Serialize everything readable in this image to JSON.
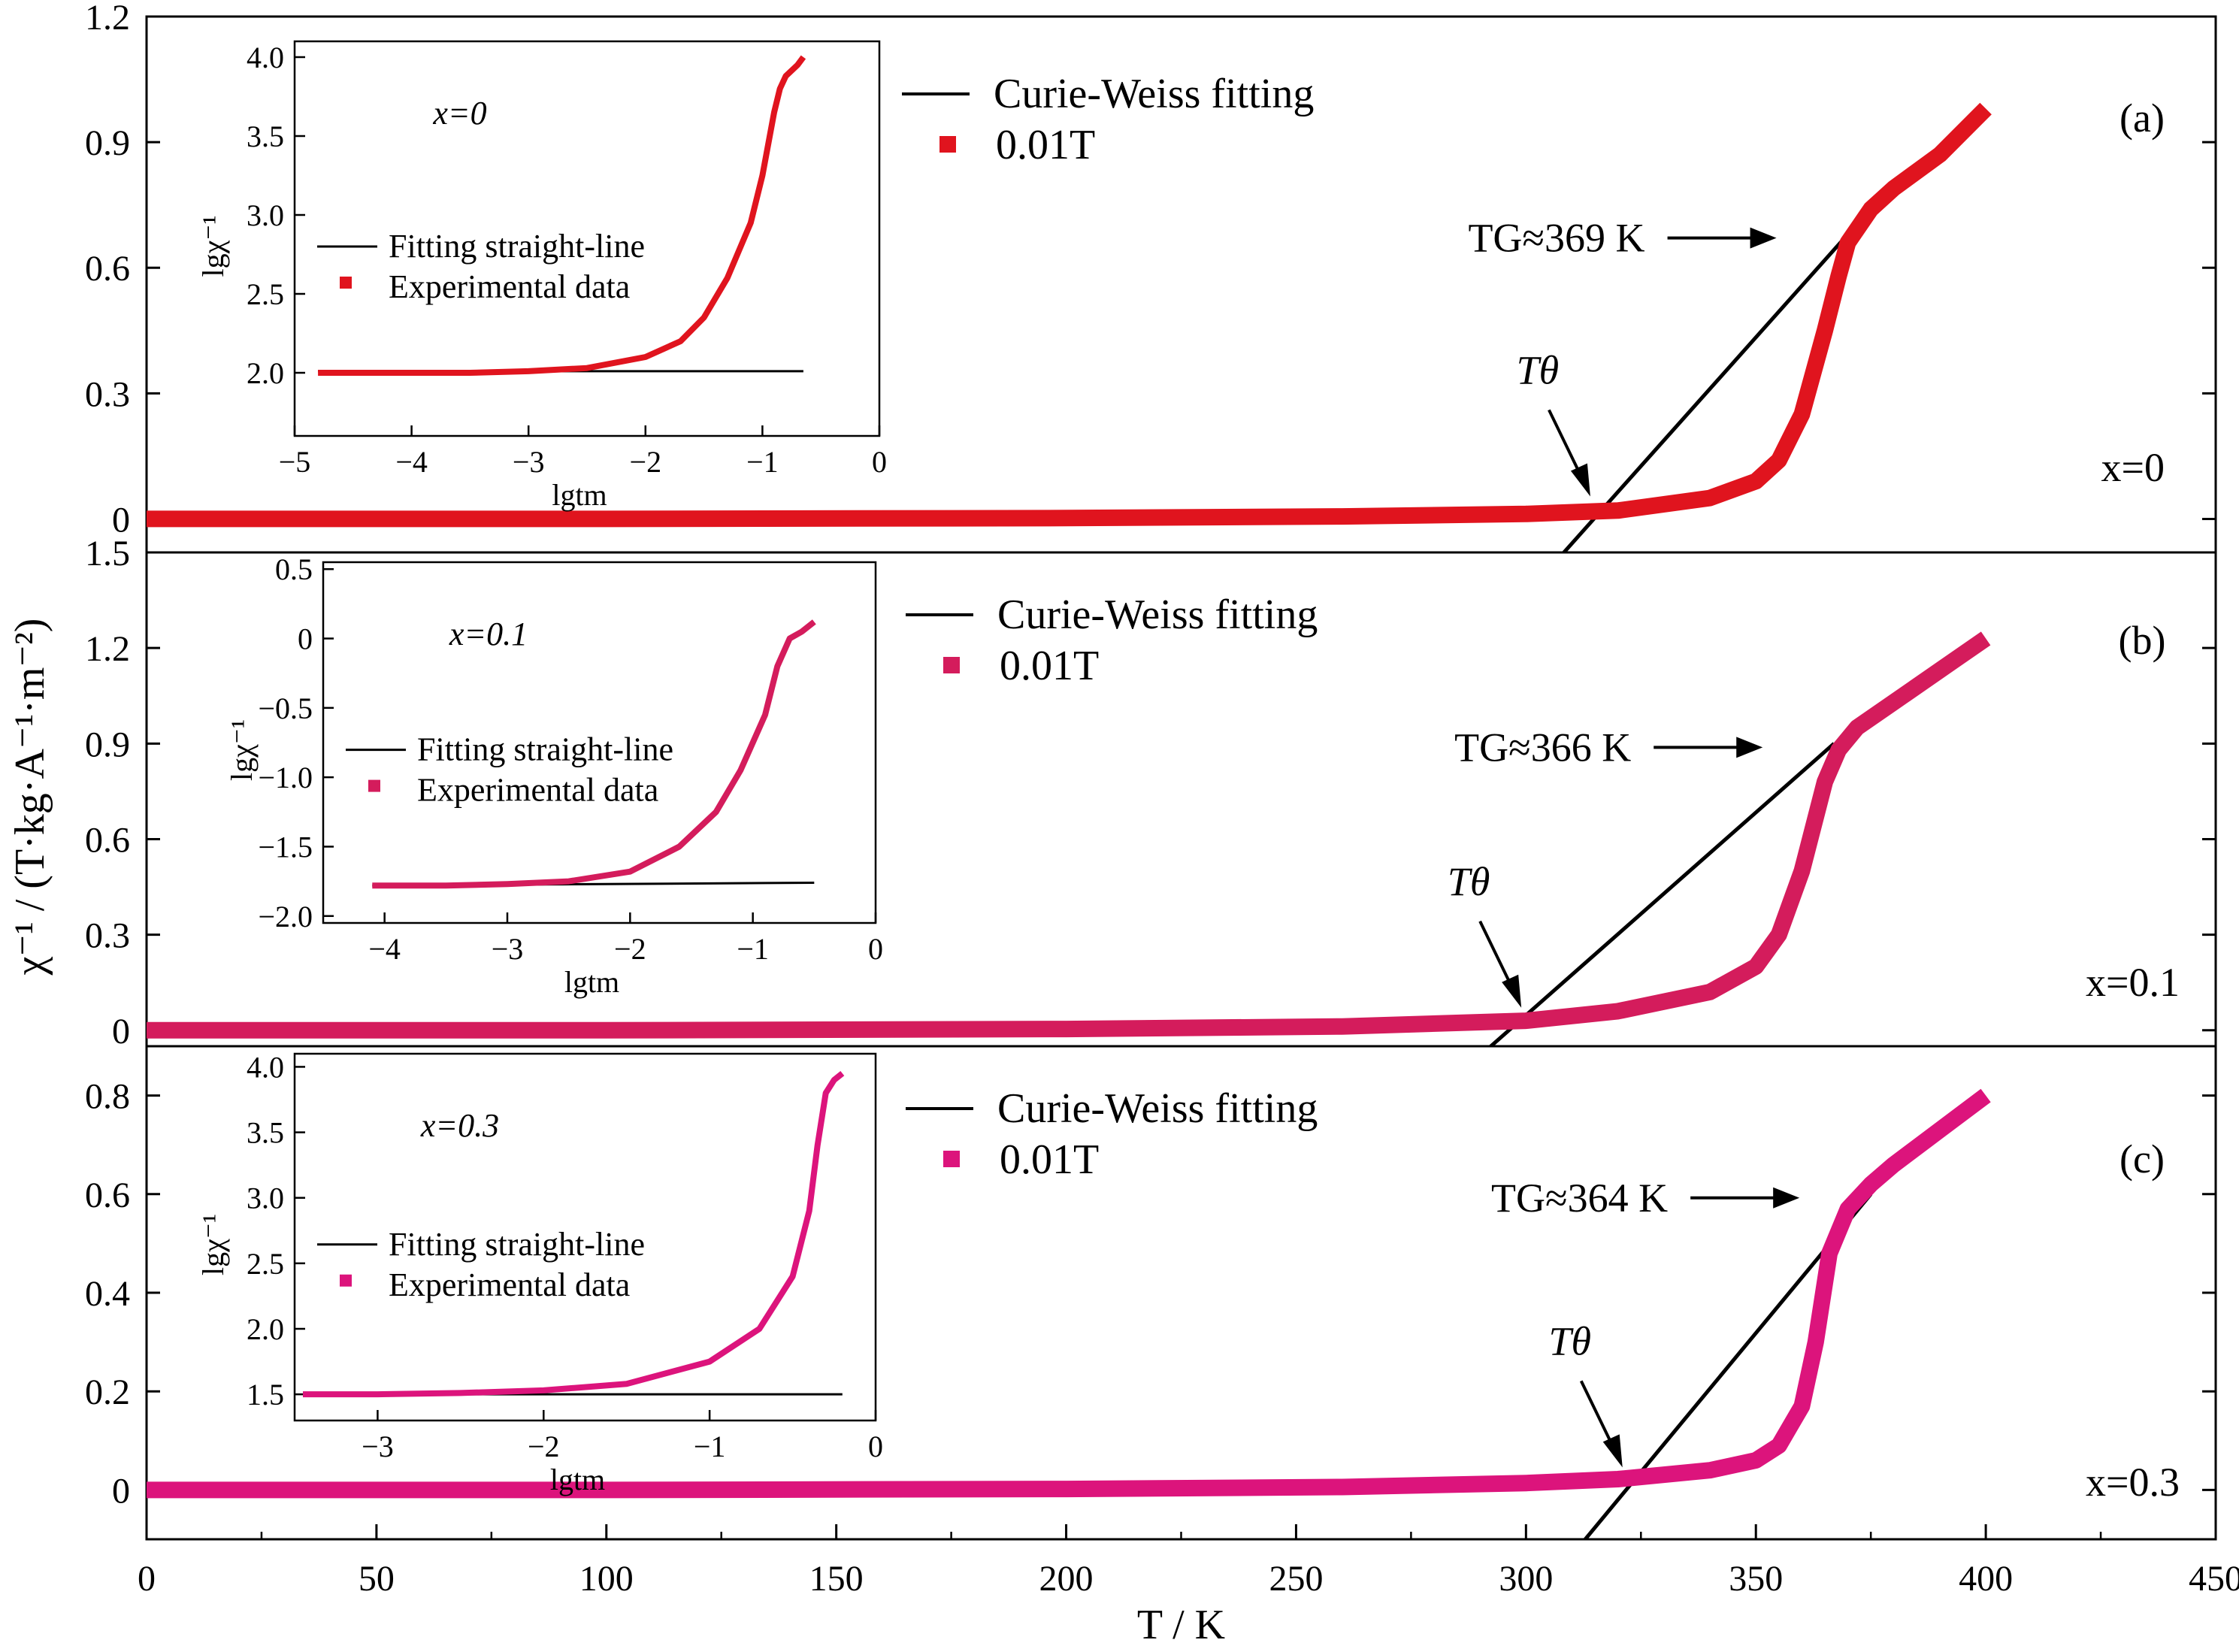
{
  "chart_data": {
    "type": "line",
    "xlabel": "T / K",
    "ylabel": "χ⁻¹ / (T·kg·A⁻¹·m⁻²)",
    "xlim": [
      0,
      450
    ],
    "xticks": [
      "0",
      "50",
      "100",
      "150",
      "200",
      "250",
      "300",
      "350",
      "400",
      "450"
    ],
    "panels": [
      {
        "label": "(a)",
        "composition": "x=0",
        "ylim": [
          -0.08,
          1.2
        ],
        "yticks": [
          "0",
          "0.3",
          "0.6",
          "0.9",
          "1.2"
        ],
        "legend": {
          "fit": "Curie-Weiss fitting",
          "data": "0.01T"
        },
        "TG_label": "TG≈369 K",
        "Ttheta_label": "Tθ",
        "color": "#e0141e",
        "series": [
          {
            "name": "0.01T",
            "x": [
              0,
              100,
              200,
              260,
              300,
              320,
              340,
              350,
              355,
              360,
              365,
              368,
              370,
              375,
              380,
              390,
              400
            ],
            "y": [
              0.0,
              0.0,
              0.002,
              0.006,
              0.012,
              0.02,
              0.05,
              0.09,
              0.14,
              0.25,
              0.45,
              0.58,
              0.66,
              0.74,
              0.79,
              0.87,
              0.98
            ]
          },
          {
            "name": "Curie-Weiss fitting",
            "x": [
              305,
              370
            ],
            "y": [
              -0.12,
              0.68
            ]
          }
        ],
        "inset": {
          "xlim": [
            -5,
            0
          ],
          "ylim": [
            1.6,
            4.1
          ],
          "xticks": [
            "−5",
            "−4",
            "−3",
            "−2",
            "−1",
            "0"
          ],
          "yticks": [
            "2.0",
            "2.5",
            "3.0",
            "3.5",
            "4.0"
          ],
          "xlabel": "lgtm",
          "ylabel": "lgχ⁻¹",
          "composition": "x=0",
          "legend": {
            "fit": "Fitting straight-line",
            "data": "Experimental data"
          },
          "data": {
            "x": [
              -4.8,
              -4.0,
              -3.5,
              -3.0,
              -2.5,
              -2.0,
              -1.7,
              -1.5,
              -1.3,
              -1.1,
              -1.0,
              -0.9,
              -0.85,
              -0.8,
              -0.7,
              -0.65
            ],
            "y": [
              2.0,
              2.0,
              2.0,
              2.01,
              2.03,
              2.1,
              2.2,
              2.35,
              2.6,
              2.95,
              3.25,
              3.65,
              3.8,
              3.88,
              3.95,
              4.0
            ]
          },
          "fit": {
            "x": [
              -4.8,
              -0.65
            ],
            "y": [
              2.01,
              2.01
            ]
          }
        }
      },
      {
        "label": "(b)",
        "composition": "x=0.1",
        "ylim": [
          -0.05,
          1.5
        ],
        "yticks": [
          "0",
          "0.3",
          "0.6",
          "0.9",
          "1.2",
          "1.5"
        ],
        "legend": {
          "fit": "Curie-Weiss fitting",
          "data": "0.01T"
        },
        "TG_label": "TG≈366 K",
        "Ttheta_label": "Tθ",
        "color": "#d41c5c",
        "series": [
          {
            "name": "0.01T",
            "x": [
              0,
              100,
              200,
              260,
              300,
              320,
              340,
              350,
              355,
              360,
              365,
              368,
              372,
              380,
              390,
              400
            ],
            "y": [
              0.0,
              0.0,
              0.004,
              0.012,
              0.03,
              0.06,
              0.12,
              0.2,
              0.3,
              0.5,
              0.78,
              0.88,
              0.95,
              1.03,
              1.13,
              1.23
            ]
          },
          {
            "name": "Curie-Weiss fitting",
            "x": [
              290,
              367
            ],
            "y": [
              -0.08,
              0.9
            ]
          }
        ],
        "inset": {
          "xlim": [
            -4.5,
            0
          ],
          "ylim": [
            -2.05,
            0.55
          ],
          "xticks": [
            "−4",
            "−3",
            "−2",
            "−1",
            "0"
          ],
          "yticks": [
            "−2.0",
            "−1.5",
            "−1.0",
            "−0.5",
            "0",
            "0.5"
          ],
          "xlabel": "lgtm",
          "ylabel": "lgχ⁻¹",
          "composition": "x=0.1",
          "legend": {
            "fit": "Fitting straight-line",
            "data": "Experimental data"
          },
          "data": {
            "x": [
              -4.1,
              -3.5,
              -3.0,
              -2.5,
              -2.0,
              -1.6,
              -1.3,
              -1.1,
              -0.9,
              -0.8,
              -0.7,
              -0.6,
              -0.5
            ],
            "y": [
              -1.78,
              -1.78,
              -1.77,
              -1.75,
              -1.68,
              -1.5,
              -1.25,
              -0.95,
              -0.55,
              -0.2,
              0.0,
              0.05,
              0.12
            ]
          },
          "fit": {
            "x": [
              -4.1,
              -0.5
            ],
            "y": [
              -1.78,
              -1.76
            ]
          }
        }
      },
      {
        "label": "(c)",
        "composition": "x=0.3",
        "ylim": [
          -0.1,
          0.9
        ],
        "yticks": [
          "0",
          "0.2",
          "0.4",
          "0.6",
          "0.8"
        ],
        "legend": {
          "fit": "Curie-Weiss fitting",
          "data": "0.01T"
        },
        "TG_label": "TG≈364 K",
        "Ttheta_label": "Tθ",
        "color": "#dc147c",
        "series": [
          {
            "name": "0.01T",
            "x": [
              0,
              100,
              200,
              260,
              300,
              320,
              340,
              350,
              355,
              360,
              363,
              366,
              370,
              375,
              380,
              390,
              400
            ],
            "y": [
              0.0,
              0.0,
              0.002,
              0.006,
              0.014,
              0.022,
              0.04,
              0.06,
              0.09,
              0.17,
              0.3,
              0.48,
              0.57,
              0.62,
              0.66,
              0.73,
              0.8
            ]
          },
          {
            "name": "Curie-Weiss fitting",
            "x": [
              312,
              375
            ],
            "y": [
              -0.11,
              0.6
            ]
          }
        ],
        "inset": {
          "xlim": [
            -3.5,
            0
          ],
          "ylim": [
            1.3,
            4.1
          ],
          "xticks": [
            "−3",
            "−2",
            "−1",
            "0"
          ],
          "yticks": [
            "1.5",
            "2.0",
            "2.5",
            "3.0",
            "3.5",
            "4.0"
          ],
          "xlabel": "lgtm",
          "ylabel": "lgχ⁻¹",
          "composition": "x=0.3",
          "legend": {
            "fit": "Fitting straight-line",
            "data": "Experimental data"
          },
          "data": {
            "x": [
              -3.45,
              -3.0,
              -2.5,
              -2.0,
              -1.5,
              -1.0,
              -0.7,
              -0.5,
              -0.4,
              -0.35,
              -0.3,
              -0.25,
              -0.2
            ],
            "y": [
              1.5,
              1.5,
              1.51,
              1.53,
              1.58,
              1.75,
              2.0,
              2.4,
              2.9,
              3.4,
              3.8,
              3.9,
              3.95
            ]
          },
          "fit": {
            "x": [
              -3.45,
              -0.2
            ],
            "y": [
              1.5,
              1.5
            ]
          }
        }
      }
    ]
  }
}
